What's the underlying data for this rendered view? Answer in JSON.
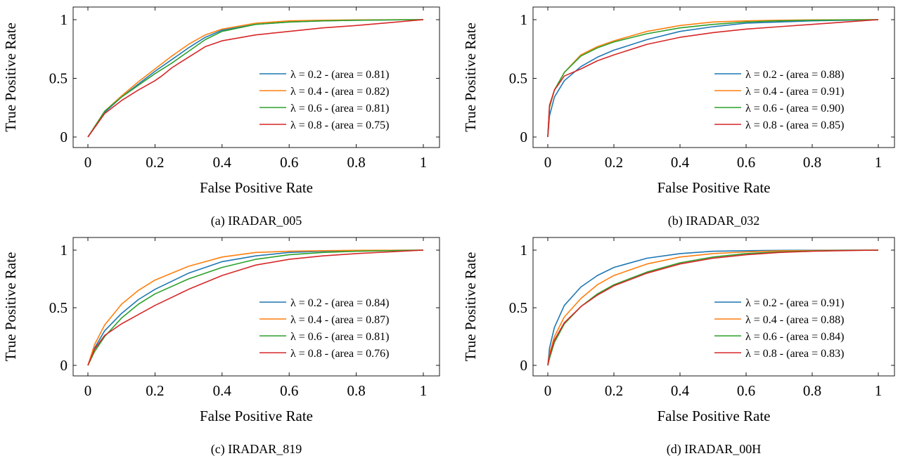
{
  "figure": {
    "panels": [
      {
        "caption": "(a) IRADAR_005",
        "xlabel": "False Positive Rate",
        "ylabel": "True Positive Rate",
        "xticks": [
          "0",
          "0.2",
          "0.4",
          "0.6",
          "0.8",
          "1"
        ],
        "yticks": [
          "0",
          "0.5",
          "1"
        ]
      },
      {
        "caption": "(b) IRADAR_032",
        "xlabel": "False Positive Rate",
        "ylabel": "True Positive Rate",
        "xticks": [
          "0",
          "0.2",
          "0.4",
          "0.6",
          "0.8",
          "1"
        ],
        "yticks": [
          "0",
          "0.5",
          "1"
        ]
      },
      {
        "caption": "(c) IRADAR_819",
        "xlabel": "False Positive Rate",
        "ylabel": "True Positive Rate",
        "xticks": [
          "0",
          "0.2",
          "0.4",
          "0.6",
          "0.8",
          "1"
        ],
        "yticks": [
          "0",
          "0.5",
          "1"
        ]
      },
      {
        "caption": "(d) IRADAR_00H",
        "xlabel": "False Positive Rate",
        "ylabel": "True Positive Rate",
        "xticks": [
          "0",
          "0.2",
          "0.4",
          "0.6",
          "0.8",
          "1"
        ],
        "yticks": [
          "0",
          "0.5",
          "1"
        ]
      }
    ]
  },
  "chart_data": [
    {
      "type": "line",
      "title": "(a) IRADAR_005",
      "xlabel": "False Positive Rate",
      "ylabel": "True Positive Rate",
      "xlim": [
        0,
        1
      ],
      "ylim": [
        0,
        1
      ],
      "legend_position": "bottom-right",
      "series": [
        {
          "name": "λ = 0.2 - (area = 0.81)",
          "lambda": "0.2",
          "area": "0.81",
          "color": "#1f77b4",
          "x": [
            0,
            0.05,
            0.1,
            0.15,
            0.2,
            0.25,
            0.3,
            0.35,
            0.4,
            0.5,
            0.6,
            0.7,
            0.8,
            0.9,
            1
          ],
          "y": [
            0,
            0.21,
            0.34,
            0.45,
            0.56,
            0.66,
            0.76,
            0.85,
            0.91,
            0.96,
            0.98,
            0.99,
            0.995,
            0.998,
            1
          ]
        },
        {
          "name": "λ = 0.4 - (area = 0.82)",
          "lambda": "0.4",
          "area": "0.82",
          "color": "#ff7f0e",
          "x": [
            0,
            0.05,
            0.1,
            0.15,
            0.2,
            0.25,
            0.3,
            0.35,
            0.4,
            0.5,
            0.6,
            0.7,
            0.8,
            0.9,
            1
          ],
          "y": [
            0,
            0.22,
            0.35,
            0.47,
            0.58,
            0.69,
            0.79,
            0.87,
            0.92,
            0.97,
            0.99,
            0.995,
            0.998,
            0.999,
            1
          ]
        },
        {
          "name": "λ = 0.6 - (area = 0.81)",
          "lambda": "0.6",
          "area": "0.81",
          "color": "#2ca02c",
          "x": [
            0,
            0.05,
            0.1,
            0.15,
            0.2,
            0.25,
            0.3,
            0.35,
            0.4,
            0.5,
            0.6,
            0.7,
            0.8,
            0.9,
            1
          ],
          "y": [
            0,
            0.22,
            0.34,
            0.44,
            0.54,
            0.63,
            0.73,
            0.83,
            0.9,
            0.96,
            0.98,
            0.99,
            0.995,
            0.998,
            1
          ]
        },
        {
          "name": "λ = 0.8 - (area = 0.75)",
          "lambda": "0.8",
          "area": "0.75",
          "color": "#d62728",
          "x": [
            0,
            0.05,
            0.1,
            0.15,
            0.2,
            0.22,
            0.25,
            0.3,
            0.35,
            0.4,
            0.5,
            0.6,
            0.7,
            0.8,
            0.9,
            1
          ],
          "y": [
            0,
            0.2,
            0.31,
            0.4,
            0.48,
            0.52,
            0.59,
            0.68,
            0.77,
            0.82,
            0.87,
            0.9,
            0.93,
            0.95,
            0.975,
            1
          ]
        }
      ]
    },
    {
      "type": "line",
      "title": "(b) IRADAR_032",
      "xlabel": "False Positive Rate",
      "ylabel": "True Positive Rate",
      "xlim": [
        0,
        1
      ],
      "ylim": [
        0,
        1
      ],
      "legend_position": "bottom-right",
      "series": [
        {
          "name": "λ = 0.2 - (area = 0.88)",
          "lambda": "0.2",
          "area": "0.88",
          "color": "#1f77b4",
          "x": [
            0,
            0.005,
            0.02,
            0.05,
            0.1,
            0.15,
            0.2,
            0.3,
            0.4,
            0.5,
            0.6,
            0.7,
            0.8,
            0.9,
            1
          ],
          "y": [
            0,
            0.18,
            0.34,
            0.48,
            0.6,
            0.68,
            0.74,
            0.83,
            0.9,
            0.94,
            0.97,
            0.98,
            0.99,
            0.995,
            1
          ]
        },
        {
          "name": "λ = 0.4 - (area = 0.91)",
          "lambda": "0.4",
          "area": "0.91",
          "color": "#ff7f0e",
          "x": [
            0,
            0.005,
            0.02,
            0.05,
            0.1,
            0.15,
            0.2,
            0.3,
            0.4,
            0.5,
            0.6,
            0.7,
            0.8,
            0.9,
            1
          ],
          "y": [
            0,
            0.25,
            0.4,
            0.55,
            0.7,
            0.77,
            0.82,
            0.9,
            0.95,
            0.98,
            0.99,
            0.995,
            0.998,
            0.999,
            1
          ]
        },
        {
          "name": "λ = 0.6 - (area = 0.90)",
          "lambda": "0.6",
          "area": "0.90",
          "color": "#2ca02c",
          "x": [
            0,
            0.005,
            0.02,
            0.05,
            0.1,
            0.15,
            0.2,
            0.3,
            0.4,
            0.5,
            0.6,
            0.7,
            0.8,
            0.9,
            1
          ],
          "y": [
            0,
            0.26,
            0.4,
            0.55,
            0.69,
            0.76,
            0.81,
            0.88,
            0.93,
            0.96,
            0.98,
            0.99,
            0.995,
            0.998,
            1
          ]
        },
        {
          "name": "λ = 0.8 - (area = 0.85)",
          "lambda": "0.8",
          "area": "0.85",
          "color": "#d62728",
          "x": [
            0,
            0.005,
            0.02,
            0.05,
            0.1,
            0.15,
            0.2,
            0.3,
            0.4,
            0.5,
            0.6,
            0.7,
            0.8,
            0.9,
            1
          ],
          "y": [
            0,
            0.27,
            0.4,
            0.52,
            0.58,
            0.65,
            0.7,
            0.79,
            0.85,
            0.89,
            0.92,
            0.94,
            0.96,
            0.98,
            1
          ]
        }
      ]
    },
    {
      "type": "line",
      "title": "(c) IRADAR_819",
      "xlabel": "False Positive Rate",
      "ylabel": "True Positive Rate",
      "xlim": [
        0,
        1
      ],
      "ylim": [
        0,
        1
      ],
      "legend_position": "bottom-right",
      "series": [
        {
          "name": "λ = 0.2 - (area = 0.84)",
          "lambda": "0.2",
          "area": "0.84",
          "color": "#1f77b4",
          "x": [
            0,
            0.02,
            0.05,
            0.1,
            0.15,
            0.2,
            0.3,
            0.4,
            0.5,
            0.6,
            0.7,
            0.8,
            0.9,
            1
          ],
          "y": [
            0,
            0.15,
            0.3,
            0.45,
            0.57,
            0.66,
            0.8,
            0.9,
            0.95,
            0.98,
            0.99,
            0.995,
            0.998,
            1
          ]
        },
        {
          "name": "λ = 0.4 - (area = 0.87)",
          "lambda": "0.4",
          "area": "0.87",
          "color": "#ff7f0e",
          "x": [
            0,
            0.02,
            0.05,
            0.1,
            0.15,
            0.2,
            0.3,
            0.4,
            0.5,
            0.6,
            0.7,
            0.8,
            0.9,
            1
          ],
          "y": [
            0,
            0.18,
            0.35,
            0.53,
            0.65,
            0.74,
            0.86,
            0.94,
            0.98,
            0.99,
            0.995,
            0.998,
            0.999,
            1
          ]
        },
        {
          "name": "λ = 0.6 - (area = 0.81)",
          "lambda": "0.6",
          "area": "0.81",
          "color": "#2ca02c",
          "x": [
            0,
            0.02,
            0.05,
            0.1,
            0.15,
            0.2,
            0.3,
            0.4,
            0.5,
            0.6,
            0.7,
            0.8,
            0.9,
            1
          ],
          "y": [
            0,
            0.12,
            0.25,
            0.41,
            0.53,
            0.62,
            0.75,
            0.85,
            0.92,
            0.96,
            0.98,
            0.99,
            0.995,
            1
          ]
        },
        {
          "name": "λ = 0.8 - (area = 0.76)",
          "lambda": "0.8",
          "area": "0.76",
          "color": "#d62728",
          "x": [
            0,
            0.02,
            0.05,
            0.1,
            0.15,
            0.2,
            0.3,
            0.4,
            0.5,
            0.6,
            0.7,
            0.8,
            0.9,
            1
          ],
          "y": [
            0,
            0.14,
            0.26,
            0.36,
            0.44,
            0.52,
            0.66,
            0.78,
            0.87,
            0.92,
            0.95,
            0.97,
            0.985,
            1
          ]
        }
      ]
    },
    {
      "type": "line",
      "title": "(d) IRADAR_00H",
      "xlabel": "False Positive Rate",
      "ylabel": "True Positive Rate",
      "xlim": [
        0,
        1
      ],
      "ylim": [
        0,
        1
      ],
      "legend_position": "bottom-right",
      "series": [
        {
          "name": "λ = 0.2 - (area = 0.91)",
          "lambda": "0.2",
          "area": "0.91",
          "color": "#1f77b4",
          "x": [
            0,
            0.005,
            0.02,
            0.05,
            0.1,
            0.15,
            0.2,
            0.3,
            0.4,
            0.5,
            0.6,
            0.7,
            0.8,
            0.9,
            1
          ],
          "y": [
            0,
            0.15,
            0.33,
            0.52,
            0.68,
            0.78,
            0.85,
            0.93,
            0.97,
            0.99,
            0.995,
            0.998,
            0.999,
            0.9995,
            1
          ]
        },
        {
          "name": "λ = 0.4 - (area = 0.88)",
          "lambda": "0.4",
          "area": "0.88",
          "color": "#ff7f0e",
          "x": [
            0,
            0.005,
            0.02,
            0.05,
            0.1,
            0.15,
            0.2,
            0.3,
            0.4,
            0.5,
            0.6,
            0.7,
            0.8,
            0.9,
            1
          ],
          "y": [
            0,
            0.1,
            0.25,
            0.42,
            0.58,
            0.7,
            0.78,
            0.88,
            0.94,
            0.97,
            0.985,
            0.993,
            0.997,
            0.999,
            1
          ]
        },
        {
          "name": "λ = 0.6 - (area = 0.84)",
          "lambda": "0.6",
          "area": "0.84",
          "color": "#2ca02c",
          "x": [
            0,
            0.005,
            0.02,
            0.05,
            0.1,
            0.15,
            0.2,
            0.3,
            0.4,
            0.5,
            0.6,
            0.7,
            0.8,
            0.9,
            1
          ],
          "y": [
            0,
            0.06,
            0.2,
            0.36,
            0.51,
            0.62,
            0.7,
            0.81,
            0.89,
            0.94,
            0.97,
            0.985,
            0.993,
            0.998,
            1
          ]
        },
        {
          "name": "λ = 0.8 - (area = 0.83)",
          "lambda": "0.8",
          "area": "0.83",
          "color": "#d62728",
          "x": [
            0,
            0.005,
            0.02,
            0.05,
            0.1,
            0.15,
            0.2,
            0.3,
            0.4,
            0.5,
            0.6,
            0.7,
            0.8,
            0.9,
            1
          ],
          "y": [
            0,
            0.08,
            0.22,
            0.37,
            0.51,
            0.61,
            0.69,
            0.8,
            0.88,
            0.93,
            0.96,
            0.98,
            0.99,
            0.996,
            1
          ]
        }
      ]
    }
  ]
}
